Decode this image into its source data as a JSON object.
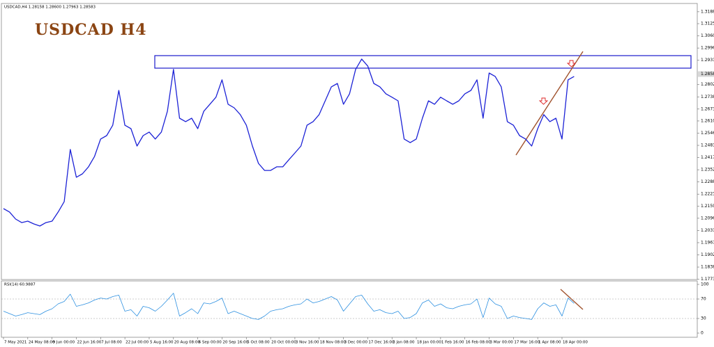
{
  "header": "USDCAD,H4  1.28158 1.28600 1.27963 1.28583",
  "chart_data": [
    {
      "type": "line",
      "title": "USDCAD H4",
      "color": "#1c22d6",
      "categories": [
        "7 May 2021",
        null,
        null,
        null,
        "24 May 08:00",
        null,
        null,
        null,
        "9 Jun 00:00",
        null,
        null,
        null,
        "22 Jun 16:00",
        null,
        null,
        null,
        "7 Jul 08:00",
        null,
        null,
        null,
        "22 Jul 00:00",
        null,
        null,
        null,
        "5 Aug 16:00",
        null,
        null,
        null,
        "20 Aug 08:00",
        null,
        null,
        null,
        "6 Sep 00:00",
        null,
        null,
        null,
        "20 Sep 16:00",
        null,
        null,
        null,
        "5 Oct 08:00",
        null,
        null,
        null,
        "20 Oct 00:00",
        null,
        null,
        null,
        "3 Nov 16:00",
        null,
        null,
        null,
        "18 Nov 08:00",
        null,
        null,
        null,
        "3 Dec 00:00",
        null,
        null,
        null,
        "17 Dec 16:00",
        null,
        null,
        null,
        "3 Jan 08:00",
        null,
        null,
        null,
        "18 Jan 00:00",
        null,
        null,
        null,
        "1 Feb 16:00",
        null,
        null,
        null,
        "16 Feb 08:00",
        null,
        null,
        null,
        "3 Mar 00:00",
        null,
        null,
        null,
        "17 Mar 16:00",
        null,
        null,
        null,
        "1 Apr 08:00",
        null,
        null,
        null,
        "18 Apr 00:00",
        null,
        null
      ],
      "values": [
        1.2147,
        1.2129,
        1.2092,
        1.2073,
        1.2081,
        1.2066,
        1.2055,
        1.2073,
        1.2081,
        1.2129,
        1.2184,
        1.246,
        1.2313,
        1.2331,
        1.2368,
        1.2423,
        1.2515,
        1.2533,
        1.2588,
        1.2772,
        1.2588,
        1.257,
        1.2478,
        1.2533,
        1.2552,
        1.2515,
        1.2552,
        1.2662,
        1.2883,
        1.2625,
        1.2607,
        1.2625,
        1.257,
        1.2662,
        1.2699,
        1.2736,
        1.2828,
        1.2699,
        1.268,
        1.2644,
        1.2588,
        1.2478,
        1.2386,
        1.2349,
        1.2349,
        1.2368,
        1.2368,
        1.2405,
        1.2441,
        1.2478,
        1.2588,
        1.2607,
        1.2644,
        1.2717,
        1.2791,
        1.2809,
        1.2699,
        1.2754,
        1.2883,
        1.2938,
        1.2901,
        1.2809,
        1.2791,
        1.2754,
        1.2736,
        1.2717,
        1.2515,
        1.2496,
        1.2515,
        1.2625,
        1.2717,
        1.2699,
        1.2736,
        1.2717,
        1.2699,
        1.2717,
        1.2754,
        1.2772,
        1.2828,
        1.2625,
        1.2864,
        1.2846,
        1.2791,
        1.2607,
        1.2588,
        1.2533,
        1.2515,
        1.2478,
        1.257,
        1.2644,
        1.2607,
        1.2625,
        1.2515,
        1.2828,
        1.2846
      ],
      "ylim": [
        1.1772,
        1.3228
      ],
      "yticks": [
        {
          "value": 1.3188,
          "label": "1.31880"
        },
        {
          "value": 1.3125,
          "label": "1.31250"
        },
        {
          "value": 1.30605,
          "label": "1.30605"
        },
        {
          "value": 1.2996,
          "label": "1.29960"
        },
        {
          "value": 1.29315,
          "label": "1.29315"
        },
        {
          "value": 1.28025,
          "label": "1.28025"
        },
        {
          "value": 1.2738,
          "label": "1.27380"
        },
        {
          "value": 1.26735,
          "label": "1.26735"
        },
        {
          "value": 1.26105,
          "label": "1.26105"
        },
        {
          "value": 1.2546,
          "label": "1.25460"
        },
        {
          "value": 1.24815,
          "label": "1.24815"
        },
        {
          "value": 1.2417,
          "label": "1.24170"
        },
        {
          "value": 1.23525,
          "label": "1.23525"
        },
        {
          "value": 1.2288,
          "label": "1.22880"
        },
        {
          "value": 1.22235,
          "label": "1.22235"
        },
        {
          "value": 1.2159,
          "label": "1.21590"
        },
        {
          "value": 1.2096,
          "label": "1.20960"
        },
        {
          "value": 1.20315,
          "label": "1.20315"
        },
        {
          "value": 1.1967,
          "label": "1.19670"
        },
        {
          "value": 1.19025,
          "label": "1.19025"
        },
        {
          "value": 1.1838,
          "label": "1.18380"
        },
        {
          "value": 1.17735,
          "label": "1.17735"
        }
      ],
      "current_price": {
        "value": 1.28583,
        "label": "1.28583"
      }
    },
    {
      "type": "line",
      "title": "RSI(14) 60.9887",
      "color": "#2b8fe0",
      "values": [
        45,
        40,
        35,
        38,
        42,
        40,
        38,
        45,
        50,
        60,
        65,
        80,
        55,
        58,
        62,
        68,
        72,
        70,
        75,
        78,
        45,
        48,
        35,
        55,
        52,
        45,
        55,
        68,
        82,
        35,
        42,
        50,
        40,
        62,
        60,
        65,
        72,
        40,
        45,
        40,
        35,
        30,
        28,
        35,
        45,
        48,
        50,
        55,
        58,
        60,
        70,
        62,
        65,
        70,
        75,
        68,
        45,
        60,
        75,
        78,
        60,
        45,
        48,
        42,
        40,
        45,
        30,
        32,
        40,
        62,
        68,
        55,
        60,
        52,
        50,
        55,
        58,
        60,
        70,
        32,
        72,
        60,
        55,
        30,
        35,
        32,
        30,
        28,
        50,
        62,
        55,
        58,
        35,
        72,
        61
      ],
      "ylim": [
        0,
        100
      ],
      "yticks": [
        100,
        70,
        30,
        0
      ]
    }
  ]
}
